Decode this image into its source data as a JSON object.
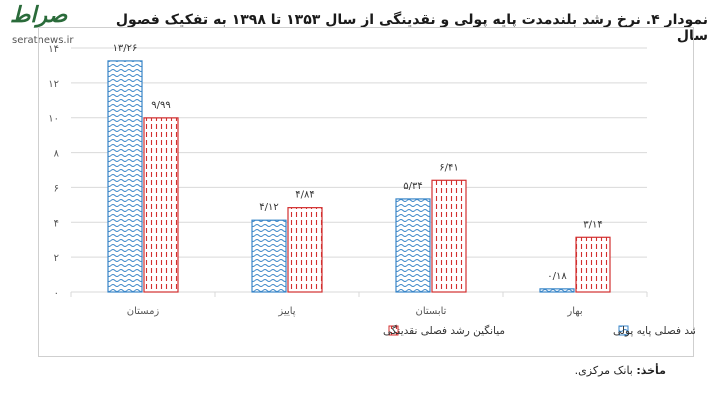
{
  "header": {
    "title": "نمودار ۴. نرخ رشد بلندمدت پایه پولی و نقدینگی از سال ۱۳۵۳ تا ۱۳۹۸ به تفکیک فصول سال"
  },
  "watermark": {
    "mark": "صراط",
    "url": "seratnews.ir"
  },
  "source": {
    "label": "مأخذ:",
    "text": "بانک مرکزی."
  },
  "colors": {
    "base_money": "#3a86c8",
    "liquidity": "#d32f2f",
    "grid": "#d9d9d9",
    "axis_text": "#555555"
  },
  "chart_data": {
    "type": "bar",
    "categories": [
      "بهار",
      "تابستان",
      "پاییز",
      "زمستان"
    ],
    "series": [
      {
        "name": "میانگین رشد فصلی پایه پولی",
        "values": [
          0.18,
          5.34,
          4.12,
          13.26
        ],
        "labels": [
          "۰/۱۸",
          "۵/۳۴",
          "۴/۱۲",
          "۱۳/۲۶"
        ]
      },
      {
        "name": "میانگین رشد فصلی نقدینگی",
        "values": [
          3.14,
          6.41,
          4.84,
          9.99
        ],
        "labels": [
          "۳/۱۴",
          "۶/۴۱",
          "۴/۸۴",
          "۹/۹۹"
        ]
      }
    ],
    "y_ticks": [
      {
        "value": 0,
        "label": "۰"
      },
      {
        "value": 2,
        "label": "۲"
      },
      {
        "value": 4,
        "label": "۴"
      },
      {
        "value": 6,
        "label": "۶"
      },
      {
        "value": 8,
        "label": "۸"
      },
      {
        "value": 10,
        "label": "۱۰"
      },
      {
        "value": 12,
        "label": "۱۲"
      },
      {
        "value": 14,
        "label": "۱۴"
      }
    ],
    "ylim": [
      0,
      14
    ],
    "grid": true,
    "legend_position": "bottom"
  }
}
